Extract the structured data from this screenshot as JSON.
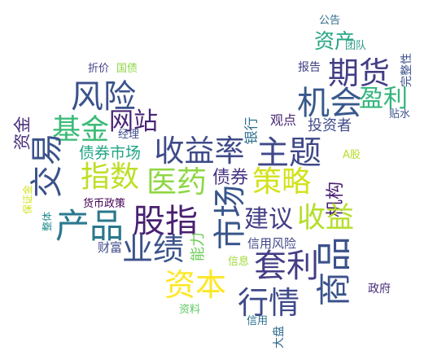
{
  "words": [
    {
      "text": "公告",
      "color": "#2f6c8e",
      "orientation": "horizontal"
    },
    {
      "text": "完整性",
      "color": "#3b528b",
      "orientation": "vertical"
    },
    {
      "text": "团队",
      "color": "#2f9c8a",
      "orientation": "horizontal"
    },
    {
      "text": "资产",
      "color": "#25a583",
      "orientation": "horizontal"
    },
    {
      "text": "期货",
      "color": "#433e85",
      "orientation": "horizontal"
    },
    {
      "text": "报告",
      "color": "#3f3f84",
      "orientation": "horizontal"
    },
    {
      "text": "折价",
      "color": "#433e85",
      "orientation": "horizontal"
    },
    {
      "text": "国债",
      "color": "#8fd744",
      "orientation": "horizontal"
    },
    {
      "text": "风险",
      "color": "#3b528b",
      "orientation": "horizontal"
    },
    {
      "text": "机会",
      "color": "#38598c",
      "orientation": "horizontal"
    },
    {
      "text": "盈利",
      "color": "#31b57b",
      "orientation": "horizontal"
    },
    {
      "text": "网站",
      "color": "#482475",
      "orientation": "horizontal"
    },
    {
      "text": "贴水",
      "color": "#3b528b",
      "orientation": "horizontal"
    },
    {
      "text": "观点",
      "color": "#482475",
      "orientation": "horizontal"
    },
    {
      "text": "投资者",
      "color": "#3e4a89",
      "orientation": "horizontal"
    },
    {
      "text": "资金",
      "color": "#472d7b",
      "orientation": "vertical"
    },
    {
      "text": "基金",
      "color": "#3aba76",
      "orientation": "horizontal"
    },
    {
      "text": "经理",
      "color": "#3e4c8a",
      "orientation": "horizontal"
    },
    {
      "text": "收益率",
      "color": "#3e4a89",
      "orientation": "horizontal"
    },
    {
      "text": "银行",
      "color": "#2d708e",
      "orientation": "vertical"
    },
    {
      "text": "主题",
      "color": "#3f4889",
      "orientation": "horizontal"
    },
    {
      "text": "债券市场",
      "color": "#21a585",
      "orientation": "horizontal"
    },
    {
      "text": "A股",
      "color": "#b5de2b",
      "orientation": "horizontal"
    },
    {
      "text": "交易",
      "color": "#3b528b",
      "orientation": "vertical"
    },
    {
      "text": "指数",
      "color": "#bddf26",
      "orientation": "horizontal"
    },
    {
      "text": "医药",
      "color": "#8fd744",
      "orientation": "horizontal"
    },
    {
      "text": "债券",
      "color": "#46337f",
      "orientation": "horizontal"
    },
    {
      "text": "策略",
      "color": "#d2e21b",
      "orientation": "horizontal"
    },
    {
      "text": "保证金",
      "color": "#d2e21b",
      "orientation": "vertical"
    },
    {
      "text": "货币政策",
      "color": "#440154",
      "orientation": "horizontal"
    },
    {
      "text": "市场",
      "color": "#39568c",
      "orientation": "vertical"
    },
    {
      "text": "机构",
      "color": "#481f70",
      "orientation": "vertical"
    },
    {
      "text": "产品",
      "color": "#2a788e",
      "orientation": "horizontal"
    },
    {
      "text": "股指",
      "color": "#482071",
      "orientation": "horizontal"
    },
    {
      "text": "建议",
      "color": "#433e85",
      "orientation": "horizontal"
    },
    {
      "text": "收益",
      "color": "#b5de2b",
      "orientation": "horizontal"
    },
    {
      "text": "整体",
      "color": "#228d8d",
      "orientation": "vertical"
    },
    {
      "text": "财富",
      "color": "#3e4a89",
      "orientation": "horizontal"
    },
    {
      "text": "业绩",
      "color": "#3b528b",
      "orientation": "horizontal"
    },
    {
      "text": "能力",
      "color": "#6ccd5a",
      "orientation": "vertical"
    },
    {
      "text": "信用风险",
      "color": "#3f4788",
      "orientation": "horizontal"
    },
    {
      "text": "信息",
      "color": "#a0da39",
      "orientation": "horizontal"
    },
    {
      "text": "套利",
      "color": "#433e85",
      "orientation": "horizontal"
    },
    {
      "text": "商品",
      "color": "#3b528b",
      "orientation": "vertical"
    },
    {
      "text": "资本",
      "color": "#fde725",
      "orientation": "horizontal"
    },
    {
      "text": "政府",
      "color": "#472c7a",
      "orientation": "horizontal"
    },
    {
      "text": "行情",
      "color": "#3e4a89",
      "orientation": "horizontal"
    },
    {
      "text": "资料",
      "color": "#5ec962",
      "orientation": "horizontal"
    },
    {
      "text": "信用",
      "color": "#2c728e",
      "orientation": "horizontal"
    },
    {
      "text": "大盘",
      "color": "#2f6b8e",
      "orientation": "vertical"
    }
  ]
}
